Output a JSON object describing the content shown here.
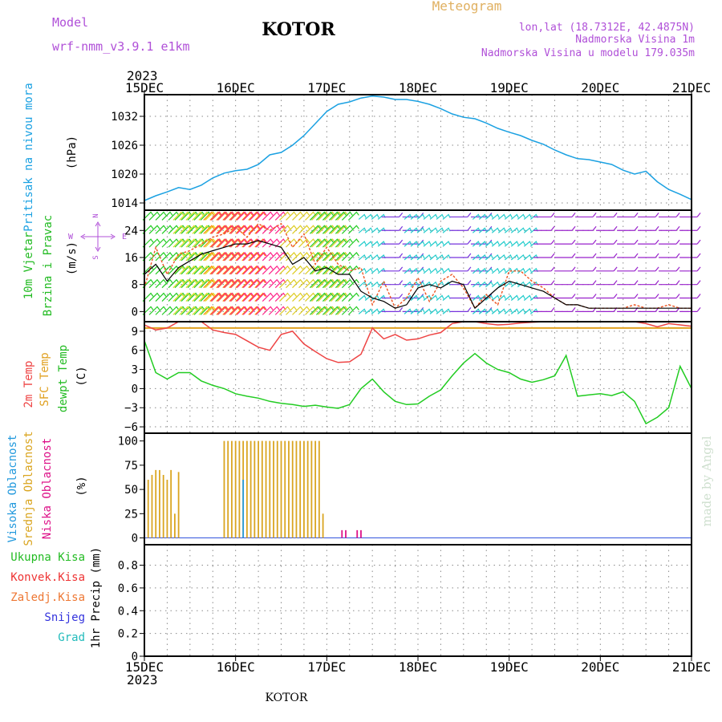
{
  "header": {
    "model_label": "Model",
    "model_name": "wrf-nmm_v3.9.1 e1km",
    "title": "KOTOR",
    "meteogram_label": "Meteogram",
    "lonlat": "lon,lat (18.7312E, 42.4875N)",
    "altitude": "Nadmorska Visina 1m",
    "model_altitude": "Nadmorska Visina u modelu 179.035m",
    "footer_title": "KOTOR",
    "credit": "made by Angel"
  },
  "colors": {
    "pressure": "#1ba1e2",
    "label_model": "#b050d8",
    "meteogram": "#e0b060",
    "wind_label": "#22bb22",
    "temp2m": "#ee4444",
    "sfc_temp": "#e0a020",
    "dewpt": "#22cc22",
    "cloud_high": "#2299dd",
    "cloud_mid": "#daa520",
    "cloud_low": "#dd1188",
    "precip_total": "#22bb22",
    "precip_conv": "#ee3333",
    "precip_frz": "#ee7733",
    "snow": "#3333dd",
    "hail": "#22bbbb"
  },
  "time_axis": {
    "year_label": "2023",
    "dates": [
      "15DEC",
      "16DEC",
      "17DEC",
      "18DEC",
      "19DEC",
      "20DEC",
      "21DEC"
    ],
    "range_hours": [
      0,
      144
    ]
  },
  "chart_data": [
    {
      "type": "line",
      "panel": "pressure",
      "ylabel": [
        "Pritisak na nivou mora",
        "(hPa)"
      ],
      "yticks": [
        1014,
        1020,
        1026,
        1032
      ],
      "ylim": [
        1012.5,
        1036.5
      ],
      "grid": true,
      "series": [
        {
          "x": [
            0,
            3,
            6,
            9,
            12,
            15,
            18,
            21,
            24,
            27,
            30,
            33,
            36,
            39,
            42,
            45,
            48,
            51,
            54,
            57,
            60,
            63,
            66,
            69,
            72,
            75,
            78,
            81,
            84,
            87,
            90,
            93,
            96,
            99,
            102,
            105,
            108,
            111,
            114,
            117,
            120,
            123,
            126,
            129,
            132,
            135,
            138,
            141,
            144
          ],
          "values": [
            1014.5,
            1015.5,
            1016.3,
            1017.2,
            1016.8,
            1017.7,
            1019.2,
            1020.2,
            1020.7,
            1021,
            1022,
            1024,
            1024.5,
            1026,
            1028,
            1030.5,
            1033,
            1034.5,
            1035,
            1035.8,
            1036.2,
            1036,
            1035.5,
            1035.5,
            1035.1,
            1034.5,
            1033.6,
            1032.5,
            1031.8,
            1031.5,
            1030.6,
            1029.5,
            1028.7,
            1028,
            1027,
            1026.2,
            1025,
            1024,
            1023.2,
            1023,
            1022.5,
            1022,
            1020.8,
            1020,
            1020.6,
            1018.4,
            1016.8,
            1015.8,
            1014.7
          ]
        }
      ]
    },
    {
      "type": "line",
      "panel": "wind",
      "ylabel": [
        "10m Vjetar",
        "Brzina i Pravac",
        "(m/s)"
      ],
      "compass_labels": {
        "n": "N",
        "s": "S",
        "e": "E",
        "w": "W"
      },
      "yticks": [
        0,
        8,
        16,
        24
      ],
      "ylim": [
        -3,
        30
      ],
      "grid": true,
      "series": [
        {
          "name": "speed",
          "x": [
            0,
            3,
            6,
            9,
            12,
            15,
            18,
            21,
            24,
            27,
            30,
            33,
            36,
            39,
            42,
            45,
            48,
            51,
            54,
            57,
            60,
            63,
            66,
            69,
            72,
            75,
            78,
            81,
            84,
            87,
            90,
            93,
            96,
            99,
            102,
            105,
            108,
            111,
            114,
            117,
            120,
            123,
            126,
            129,
            132,
            135,
            138,
            141,
            144
          ],
          "values": [
            11,
            14,
            9,
            13,
            15,
            17,
            18,
            19,
            20,
            20,
            21,
            20,
            19,
            14,
            16,
            12,
            13,
            11,
            11,
            6,
            4,
            3,
            1,
            2,
            7,
            8,
            7,
            9,
            8,
            1,
            4,
            7,
            9,
            8,
            7,
            6,
            4,
            2,
            2,
            1,
            1,
            1,
            1,
            1,
            1,
            1,
            1,
            1,
            1
          ]
        },
        {
          "name": "gust",
          "x": [
            0,
            3,
            6,
            9,
            12,
            15,
            18,
            21,
            24,
            27,
            30,
            33,
            36,
            39,
            42,
            45,
            48,
            51,
            54,
            57,
            60,
            63,
            66,
            69,
            72,
            75,
            78,
            81,
            84,
            87,
            90,
            93,
            96,
            99,
            102,
            105,
            108,
            111,
            114,
            117,
            120,
            123,
            126,
            129,
            132,
            135,
            138,
            141,
            144
          ],
          "values": [
            7,
            19,
            11,
            17,
            18,
            20,
            22,
            23,
            25,
            22,
            26,
            24,
            26,
            19,
            23,
            14,
            19,
            14,
            12,
            13,
            2,
            9,
            1,
            4,
            10,
            3,
            9,
            11,
            7,
            1,
            5,
            2,
            12,
            12,
            9,
            7,
            4,
            2,
            2,
            1,
            1,
            1,
            1,
            2,
            1,
            1,
            2,
            1,
            1
          ]
        }
      ],
      "barbs": [
        {
          "from_hour": 0,
          "to_hour": 16,
          "color": "#22cc22"
        },
        {
          "from_hour": 8,
          "to_hour": 24,
          "color": "#dddd22"
        },
        {
          "from_hour": 16,
          "to_hour": 30,
          "color": "#ff8800"
        },
        {
          "from_hour": 18,
          "to_hour": 36,
          "color": "#ff2288"
        },
        {
          "from_hour": 36,
          "to_hour": 52,
          "color": "#ddcc22"
        },
        {
          "from_hour": 44,
          "to_hour": 56,
          "color": "#22cc22"
        },
        {
          "from_hour": 56,
          "to_hour": 62,
          "color": "#22cccc"
        },
        {
          "from_hour": 62,
          "to_hour": 68,
          "color": "#7733dd"
        },
        {
          "from_hour": 68,
          "to_hour": 80,
          "color": "#22cccc"
        },
        {
          "from_hour": 80,
          "to_hour": 86,
          "color": "#7733dd"
        },
        {
          "from_hour": 86,
          "to_hour": 102,
          "color": "#22cccc"
        },
        {
          "from_hour": 102,
          "to_hour": 144,
          "color": "#9922cc"
        }
      ]
    },
    {
      "type": "line",
      "panel": "temperature",
      "ylabel": [
        "2m Temp",
        "SFC Temp",
        "dewpt Temp",
        "(C)"
      ],
      "yticks": [
        -6,
        -3,
        0,
        3,
        6,
        9
      ],
      "ylim": [
        -7,
        10.5
      ],
      "grid": true,
      "series": [
        {
          "name": "2m Temp",
          "x": [
            0,
            3,
            6,
            9,
            12,
            15,
            18,
            21,
            24,
            27,
            30,
            33,
            36,
            39,
            42,
            45,
            48,
            51,
            54,
            57,
            60,
            63,
            66,
            69,
            72,
            75,
            78,
            81,
            84,
            87,
            90,
            93,
            96,
            99,
            102,
            105,
            108,
            111,
            114,
            117,
            120,
            123,
            126,
            129,
            132,
            135,
            138,
            141,
            144
          ],
          "values": [
            10,
            9.2,
            9.5,
            10.5,
            10.5,
            10.5,
            9.2,
            8.8,
            8.5,
            7.5,
            6.5,
            6.0,
            8.5,
            9.0,
            7.0,
            5.8,
            4.7,
            4.1,
            4.2,
            5.4,
            9.5,
            7.8,
            8.5,
            7.6,
            7.8,
            8.4,
            8.8,
            10.2,
            10.5,
            10.5,
            10.2,
            10.0,
            10.1,
            10.3,
            10.4,
            10.5,
            10.5,
            10.5,
            10.5,
            10.5,
            10.5,
            10.5,
            10.5,
            10.5,
            10.2,
            9.7,
            10.2,
            10.0,
            9.8
          ]
        },
        {
          "name": "SFC Temp",
          "x": [
            0,
            144
          ],
          "values": [
            9.5,
            9.5
          ]
        },
        {
          "name": "dewpt Temp",
          "x": [
            0,
            3,
            6,
            9,
            12,
            15,
            18,
            21,
            24,
            27,
            30,
            33,
            36,
            39,
            42,
            45,
            48,
            51,
            54,
            57,
            60,
            63,
            66,
            69,
            72,
            75,
            78,
            81,
            84,
            87,
            90,
            93,
            96,
            99,
            102,
            105,
            108,
            111,
            114,
            117,
            120,
            123,
            126,
            129,
            132,
            135,
            138,
            141,
            144
          ],
          "values": [
            7.5,
            2.5,
            1.5,
            2.5,
            2.5,
            1.2,
            0.5,
            0,
            -0.8,
            -1.2,
            -1.5,
            -2.0,
            -2.3,
            -2.5,
            -2.8,
            -2.6,
            -2.9,
            -3.1,
            -2.5,
            0,
            1.5,
            -0.5,
            -2.0,
            -2.5,
            -2.4,
            -1.2,
            -0.2,
            2.0,
            4.0,
            5.5,
            4.0,
            3.0,
            2.5,
            1.5,
            1.0,
            1.4,
            2.0,
            5.2,
            -1.2,
            -1.0,
            -0.8,
            -1.1,
            -0.5,
            -2.0,
            -5.5,
            -4.5,
            -3.0,
            3.5,
            0
          ]
        }
      ]
    },
    {
      "type": "bar",
      "panel": "clouds",
      "ylabel": [
        "Visoka Oblacnost",
        "Srednja Oblacnost",
        "Niska Oblacnost",
        "(%)"
      ],
      "yticks": [
        0,
        25,
        50,
        75,
        100
      ],
      "ylim": [
        -7,
        108
      ],
      "grid": false,
      "series": [
        {
          "name": "Srednja Oblacnost",
          "x": [
            1,
            2,
            3,
            4,
            5,
            6,
            7,
            8,
            9,
            21,
            22,
            23,
            24,
            25,
            26,
            27,
            28,
            29,
            30,
            31,
            32,
            33,
            34,
            35,
            36,
            37,
            38,
            39,
            40,
            41,
            42,
            43,
            44,
            45,
            46,
            47
          ],
          "values": [
            60,
            65,
            70,
            70,
            65,
            60,
            70,
            25,
            68,
            100,
            100,
            100,
            100,
            100,
            100,
            100,
            100,
            100,
            100,
            100,
            100,
            100,
            100,
            100,
            100,
            100,
            100,
            100,
            100,
            100,
            100,
            100,
            100,
            100,
            100,
            25
          ]
        },
        {
          "name": "Visoka Oblacnost",
          "x": [
            26
          ],
          "values": [
            60
          ]
        },
        {
          "name": "Niska Oblacnost",
          "x": [
            52,
            53,
            56,
            57
          ],
          "values": [
            8,
            8,
            8,
            8
          ]
        }
      ]
    },
    {
      "type": "bar",
      "panel": "precip",
      "ylabel": [
        "1hr Precip (mm)"
      ],
      "legend": [
        "Ukupna Kisa",
        "Konvek.Kisa",
        "Zaledj.Kisa",
        "Snijeg",
        "Grad"
      ],
      "yticks": [
        0,
        0.2,
        0.4,
        0.6,
        0.8
      ],
      "ylim": [
        0,
        0.98
      ],
      "grid": true,
      "series": []
    }
  ]
}
